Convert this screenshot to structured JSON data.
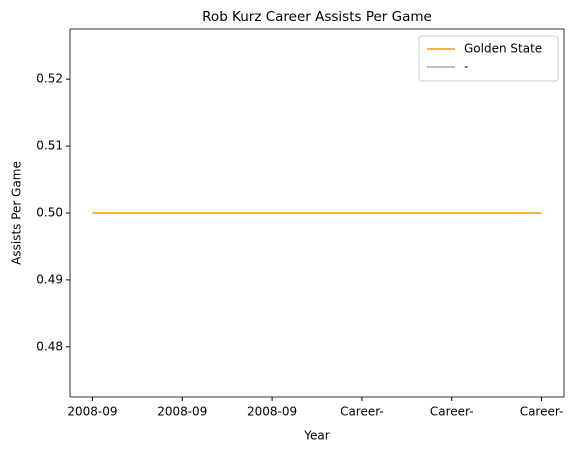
{
  "chart_data": {
    "type": "line",
    "title": "Rob Kurz Career Assists Per Game",
    "xlabel": "Year",
    "ylabel": "Assists Per Game",
    "categories": [
      "2008-09",
      "2008-09",
      "2008-09",
      "Career-",
      "Career-",
      "Career-"
    ],
    "series": [
      {
        "name": "Golden State",
        "color": "#f5b83d",
        "values": [
          0.5,
          0.5,
          0.5,
          0.5,
          0.5,
          0.5
        ]
      },
      {
        "name": "-",
        "color": "#c0c0c0",
        "values": [
          null,
          null,
          null,
          null,
          null,
          null
        ]
      }
    ],
    "ylim": [
      0.4725,
      0.5275
    ],
    "yticks": [
      0.48,
      0.49,
      {
        "value": 0.5,
        "label": "0.50"
      },
      0.51,
      0.52
    ],
    "legend": "upper right"
  }
}
